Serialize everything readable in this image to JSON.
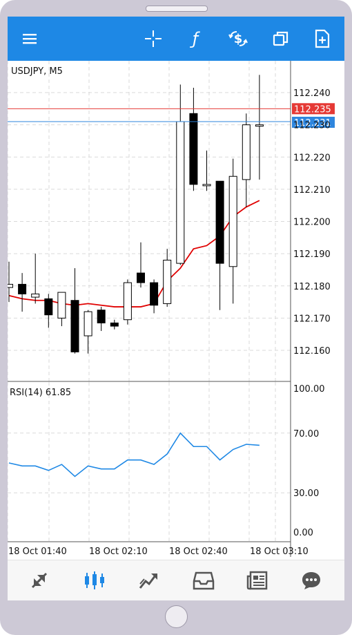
{
  "toolbar": {
    "icons": [
      "menu-icon",
      "crosshair-icon",
      "function-icon",
      "dollar-exchange-icon",
      "windows-icon",
      "new-order-icon"
    ]
  },
  "chart": {
    "symbol_label": "USDJPY, M5",
    "indicator_label": "RSI(14) 61.85",
    "ask_price_tag": "112.235",
    "bid_price_tag": "112.231",
    "colors": {
      "ask_line": "#e53935",
      "bid_line": "#2e86de",
      "ma_line": "#e00000",
      "rsi_line": "#1e88e5",
      "up_candle": "#ffffff",
      "down_candle": "#000000"
    }
  },
  "chart_data": [
    {
      "type": "candlestick",
      "title": "USDJPY, M5",
      "price_ticks": [
        "112.240",
        "112.230",
        "112.220",
        "112.210",
        "112.200",
        "112.190",
        "112.180",
        "112.170",
        "112.160"
      ],
      "time_labels": [
        "18 Oct 01:40",
        "18 Oct 02:10",
        "18 Oct 02:40",
        "18 Oct 03:10"
      ],
      "ylim": [
        112.15,
        112.243
      ],
      "candles": [
        {
          "o": 112.1795,
          "h": 112.1875,
          "l": 112.175,
          "c": 112.1805
        },
        {
          "o": 112.1805,
          "h": 112.184,
          "l": 112.172,
          "c": 112.1775
        },
        {
          "o": 112.1765,
          "h": 112.19,
          "l": 112.1745,
          "c": 112.1775
        },
        {
          "o": 112.176,
          "h": 112.1775,
          "l": 112.167,
          "c": 112.171
        },
        {
          "o": 112.17,
          "h": 112.178,
          "l": 112.1675,
          "c": 112.178
        },
        {
          "o": 112.1755,
          "h": 112.1855,
          "l": 112.159,
          "c": 112.1595
        },
        {
          "o": 112.1645,
          "h": 112.1725,
          "l": 112.159,
          "c": 112.172
        },
        {
          "o": 112.1725,
          "h": 112.1735,
          "l": 112.166,
          "c": 112.1685
        },
        {
          "o": 112.1685,
          "h": 112.1695,
          "l": 112.1665,
          "c": 112.1675
        },
        {
          "o": 112.1695,
          "h": 112.182,
          "l": 112.168,
          "c": 112.181
        },
        {
          "o": 112.184,
          "h": 112.1935,
          "l": 112.1795,
          "c": 112.181
        },
        {
          "o": 112.181,
          "h": 112.182,
          "l": 112.1715,
          "c": 112.174
        },
        {
          "o": 112.1745,
          "h": 112.1915,
          "l": 112.1735,
          "c": 112.188
        },
        {
          "o": 112.187,
          "h": 112.2425,
          "l": 112.1865,
          "c": 112.231
        },
        {
          "o": 112.2335,
          "h": 112.2415,
          "l": 112.2095,
          "c": 112.2115
        },
        {
          "o": 112.2115,
          "h": 112.222,
          "l": 112.2095,
          "c": 112.2115
        },
        {
          "o": 112.2125,
          "h": 112.2125,
          "l": 112.1725,
          "c": 112.187
        },
        {
          "o": 112.186,
          "h": 112.2195,
          "l": 112.1745,
          "c": 112.214
        },
        {
          "o": 112.213,
          "h": 112.2335,
          "l": 112.2045,
          "c": 112.23
        },
        {
          "o": 112.23,
          "h": 112.2455,
          "l": 112.213,
          "c": 112.23
        }
      ],
      "ma": [
        112.177,
        112.176,
        112.1755,
        112.1755,
        112.1745,
        112.174,
        112.1745,
        112.174,
        112.1735,
        112.1735,
        112.1735,
        112.1745,
        112.1815,
        112.1855,
        112.1915,
        112.1925,
        112.1955,
        112.2015,
        112.2045,
        112.2065
      ],
      "ask": 112.235,
      "bid": 112.231
    },
    {
      "type": "line",
      "title": "RSI(14) 61.85",
      "y_ticks": [
        "100.00",
        "70.00",
        "30.00",
        "0.00"
      ],
      "ylim": [
        0,
        100
      ],
      "values": [
        50,
        48,
        48,
        45,
        49,
        41,
        48,
        46,
        46,
        52,
        52,
        49,
        56,
        70,
        61,
        61,
        52,
        59,
        62.5,
        61.85
      ]
    }
  ],
  "bottom_nav": {
    "icons": [
      "quotes-icon",
      "chart-icon",
      "trade-icon",
      "history-icon",
      "news-icon",
      "chat-icon"
    ],
    "active": "chart-icon",
    "active_color": "#1e88e5",
    "inactive_color": "#555555"
  }
}
